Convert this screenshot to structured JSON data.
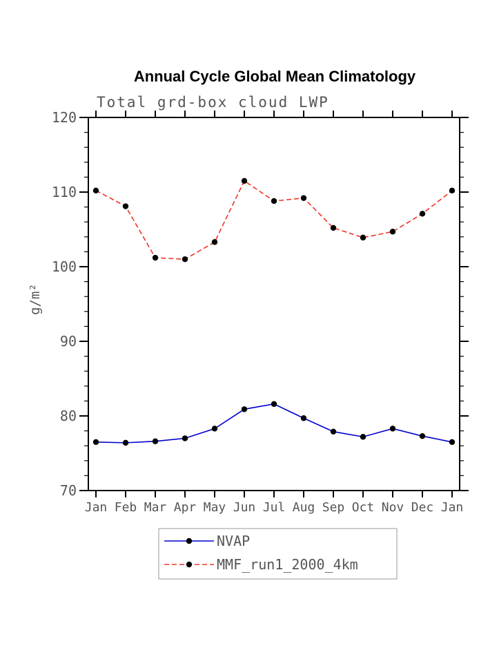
{
  "page": {
    "background": "#ffffff"
  },
  "style": {
    "axis_text_color": "#555555",
    "axis_line_color": "#000000",
    "title_color": "#000000",
    "marker_color": "#000000",
    "legend_border_color": "#999999"
  },
  "chart_data": {
    "type": "line",
    "title": "Annual Cycle Global Mean Climatology",
    "subtitle": "Total grd-box cloud LWP",
    "xlabel": "",
    "ylabel": "g/m²",
    "categories": [
      "Jan",
      "Feb",
      "Mar",
      "Apr",
      "May",
      "Jun",
      "Jul",
      "Aug",
      "Sep",
      "Oct",
      "Nov",
      "Dec",
      "Jan"
    ],
    "ylim": [
      70,
      120
    ],
    "yticks": [
      70,
      80,
      90,
      100,
      110,
      120
    ],
    "minor_tick_step": 2,
    "grid": false,
    "legend_position": "bottom",
    "series": [
      {
        "name": "NVAP",
        "color": "#0000cd",
        "style": "solid",
        "marker": "circle",
        "marker_color": "#000000",
        "values": [
          76.5,
          76.4,
          76.6,
          77.0,
          78.3,
          80.9,
          81.6,
          79.7,
          77.9,
          77.2,
          78.3,
          77.3,
          76.5
        ]
      },
      {
        "name": "MMF_run1_2000_4km",
        "color": "#ee3224",
        "style": "dashed",
        "marker": "circle",
        "marker_color": "#000000",
        "values": [
          110.2,
          108.1,
          101.2,
          101.0,
          103.3,
          111.5,
          108.8,
          109.2,
          105.2,
          103.9,
          104.7,
          107.1,
          110.2
        ]
      }
    ]
  }
}
